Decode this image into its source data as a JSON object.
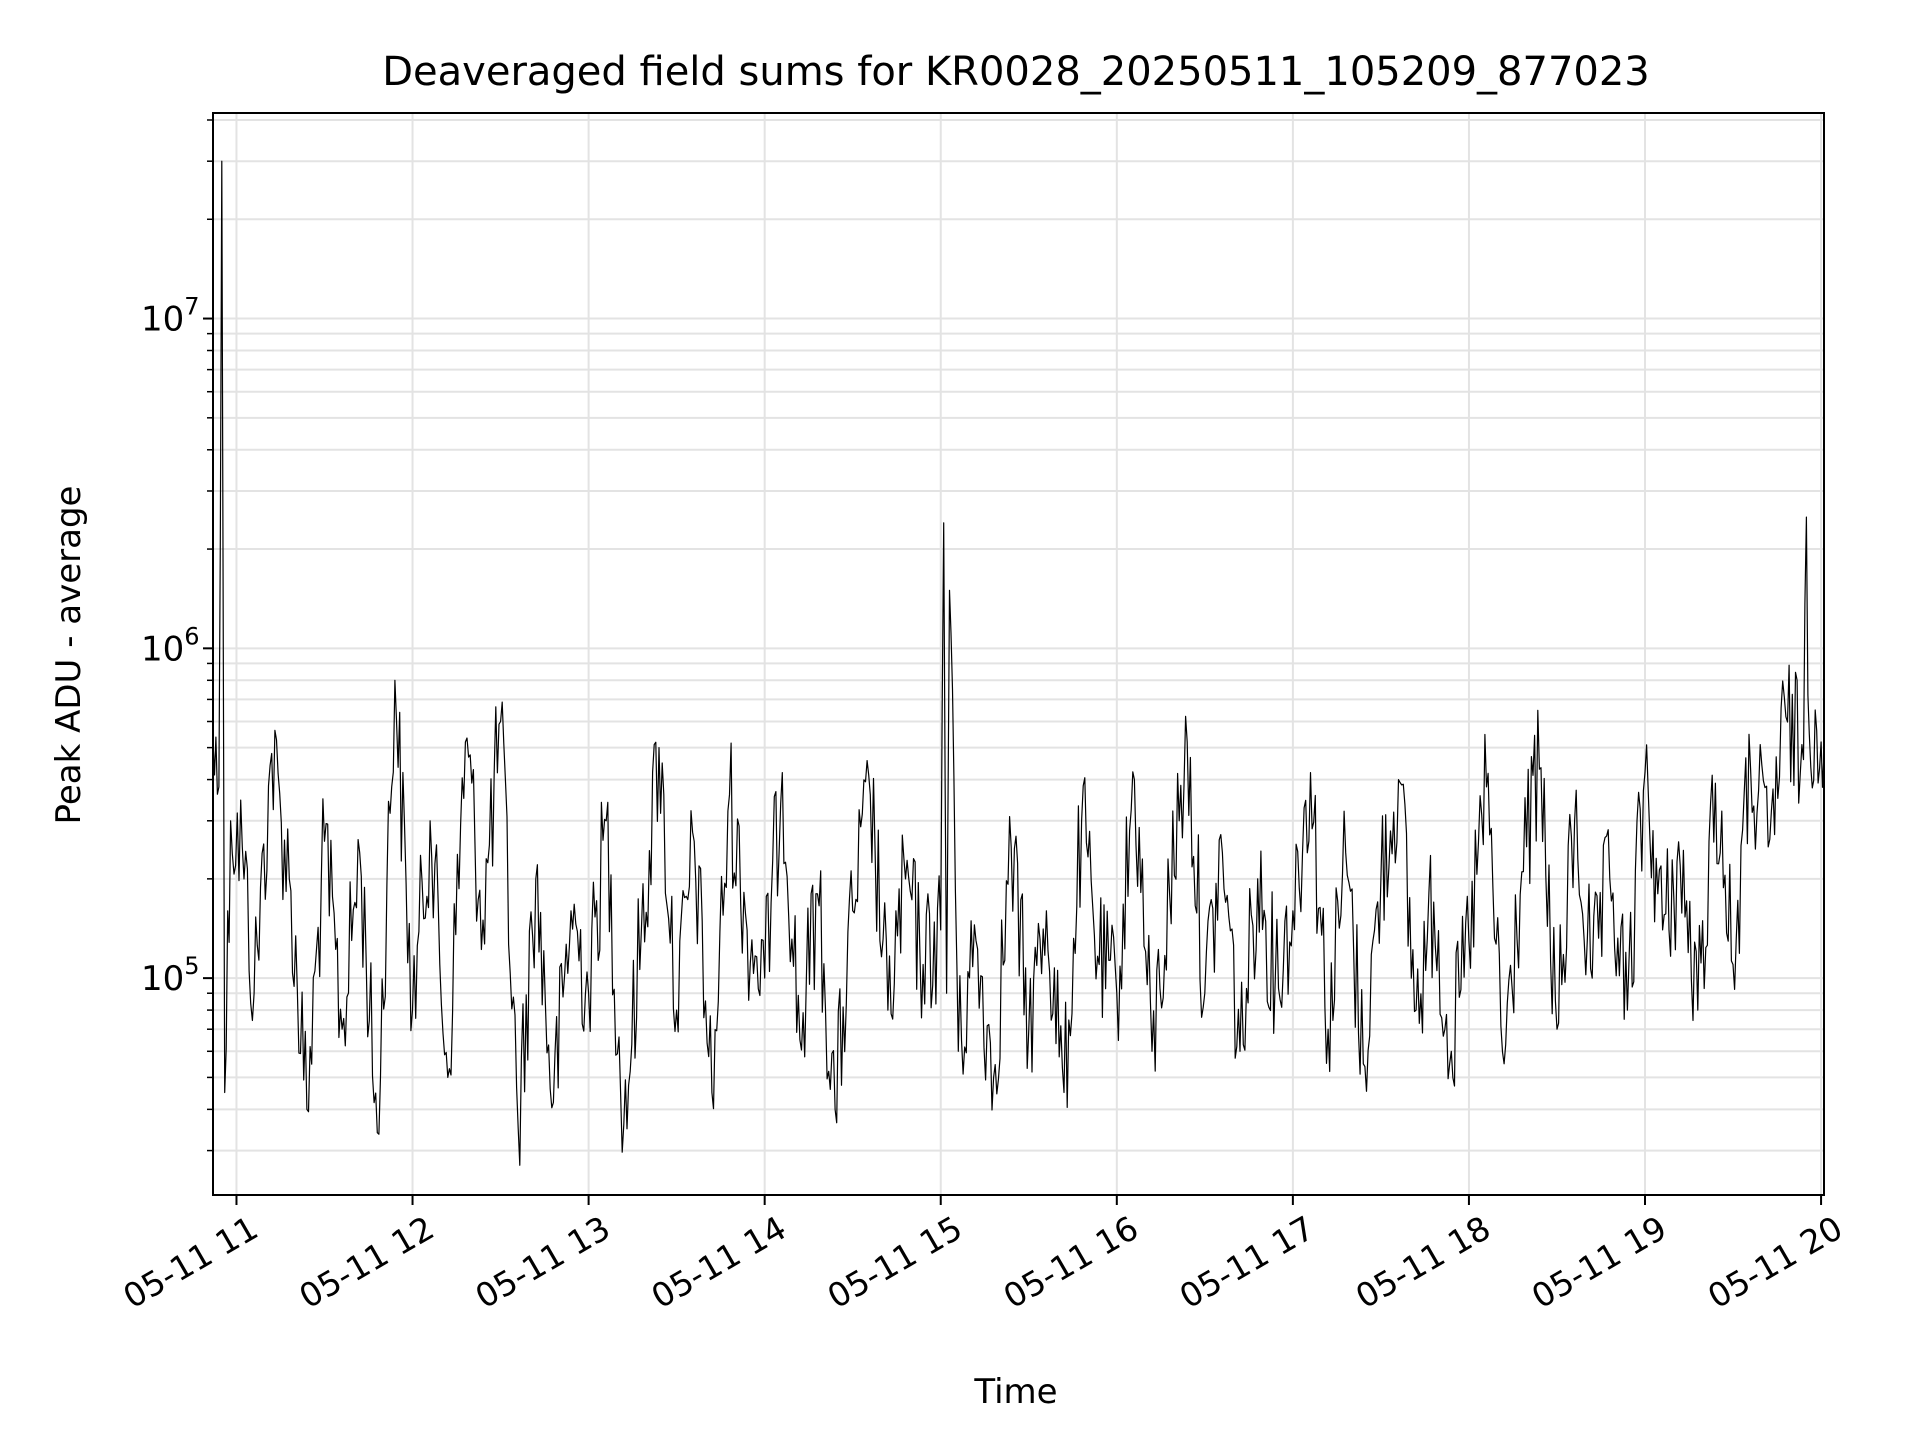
{
  "chart_data": {
    "type": "line",
    "title": "Deaveraged field sums for KR0028_20250511_105209_877023",
    "xlabel": "Time",
    "ylabel": "Peak ADU - average",
    "yscale": "log",
    "grid": true,
    "xlim": [
      "2025-05-11 10:52",
      "2025-05-11 20:01"
    ],
    "ylim": [
      22000,
      42000000
    ],
    "x_ticks": [
      {
        "value": "2025-05-11 11:00",
        "label": "05-11 11"
      },
      {
        "value": "2025-05-11 12:00",
        "label": "05-11 12"
      },
      {
        "value": "2025-05-11 13:00",
        "label": "05-11 13"
      },
      {
        "value": "2025-05-11 14:00",
        "label": "05-11 14"
      },
      {
        "value": "2025-05-11 15:00",
        "label": "05-11 15"
      },
      {
        "value": "2025-05-11 16:00",
        "label": "05-11 16"
      },
      {
        "value": "2025-05-11 17:00",
        "label": "05-11 17"
      },
      {
        "value": "2025-05-11 18:00",
        "label": "05-11 18"
      },
      {
        "value": "2025-05-11 19:00",
        "label": "05-11 19"
      },
      {
        "value": "2025-05-11 20:00",
        "label": "05-11 20"
      }
    ],
    "y_ticks": [
      {
        "value": 100000,
        "base": "10",
        "exp": "5"
      },
      {
        "value": 1000000,
        "base": "10",
        "exp": "6"
      },
      {
        "value": 10000000,
        "base": "10",
        "exp": "7"
      }
    ],
    "series": [
      {
        "color": "#000000",
        "x": [
          "2025-05-11 10:52",
          "2025-05-11 10:54",
          "2025-05-11 10:55",
          "2025-05-11 10:56",
          "2025-05-11 10:58",
          "2025-05-11 11:02",
          "2025-05-11 11:06",
          "2025-05-11 11:12",
          "2025-05-11 11:18",
          "2025-05-11 11:24",
          "2025-05-11 11:30",
          "2025-05-11 11:36",
          "2025-05-11 11:42",
          "2025-05-11 11:48",
          "2025-05-11 11:54",
          "2025-05-11 12:00",
          "2025-05-11 12:06",
          "2025-05-11 12:12",
          "2025-05-11 12:18",
          "2025-05-11 12:24",
          "2025-05-11 12:30",
          "2025-05-11 12:36",
          "2025-05-11 12:42",
          "2025-05-11 12:48",
          "2025-05-11 12:54",
          "2025-05-11 13:00",
          "2025-05-11 13:06",
          "2025-05-11 13:12",
          "2025-05-11 13:18",
          "2025-05-11 13:24",
          "2025-05-11 13:30",
          "2025-05-11 13:36",
          "2025-05-11 13:42",
          "2025-05-11 13:48",
          "2025-05-11 13:54",
          "2025-05-11 14:00",
          "2025-05-11 14:06",
          "2025-05-11 14:12",
          "2025-05-11 14:18",
          "2025-05-11 14:24",
          "2025-05-11 14:30",
          "2025-05-11 14:36",
          "2025-05-11 14:42",
          "2025-05-11 14:48",
          "2025-05-11 14:54",
          "2025-05-11 15:00",
          "2025-05-11 15:01",
          "2025-05-11 15:02",
          "2025-05-11 15:03",
          "2025-05-11 15:04",
          "2025-05-11 15:06",
          "2025-05-11 15:12",
          "2025-05-11 15:18",
          "2025-05-11 15:24",
          "2025-05-11 15:30",
          "2025-05-11 15:36",
          "2025-05-11 15:42",
          "2025-05-11 15:48",
          "2025-05-11 15:54",
          "2025-05-11 16:00",
          "2025-05-11 16:06",
          "2025-05-11 16:12",
          "2025-05-11 16:18",
          "2025-05-11 16:24",
          "2025-05-11 16:30",
          "2025-05-11 16:36",
          "2025-05-11 16:42",
          "2025-05-11 16:48",
          "2025-05-11 16:54",
          "2025-05-11 17:00",
          "2025-05-11 17:06",
          "2025-05-11 17:12",
          "2025-05-11 17:18",
          "2025-05-11 17:24",
          "2025-05-11 17:30",
          "2025-05-11 17:36",
          "2025-05-11 17:42",
          "2025-05-11 17:48",
          "2025-05-11 17:54",
          "2025-05-11 18:00",
          "2025-05-11 18:06",
          "2025-05-11 18:12",
          "2025-05-11 18:18",
          "2025-05-11 18:24",
          "2025-05-11 18:30",
          "2025-05-11 18:36",
          "2025-05-11 18:42",
          "2025-05-11 18:48",
          "2025-05-11 18:54",
          "2025-05-11 19:00",
          "2025-05-11 19:06",
          "2025-05-11 19:12",
          "2025-05-11 19:18",
          "2025-05-11 19:24",
          "2025-05-11 19:30",
          "2025-05-11 19:36",
          "2025-05-11 19:42",
          "2025-05-11 19:48",
          "2025-05-11 19:54",
          "2025-05-11 19:55",
          "2025-05-11 19:56",
          "2025-05-11 19:58",
          "2025-05-11 20:00",
          "2025-05-11 20:01"
        ],
        "y": [
          520000,
          380000,
          30000000,
          45000,
          300000,
          250000,
          90000,
          480000,
          200000,
          40000,
          260000,
          70000,
          240000,
          34000,
          800000,
          80000,
          300000,
          50000,
          520000,
          150000,
          600000,
          35000,
          200000,
          42000,
          160000,
          90000,
          300000,
          36000,
          140000,
          500000,
          80000,
          260000,
          45000,
          360000,
          140000,
          100000,
          420000,
          65000,
          180000,
          40000,
          160000,
          360000,
          80000,
          200000,
          110000,
          140000,
          2400000,
          90000,
          1500000,
          750000,
          60000,
          130000,
          50000,
          250000,
          70000,
          160000,
          45000,
          300000,
          110000,
          90000,
          400000,
          60000,
          180000,
          520000,
          90000,
          240000,
          60000,
          200000,
          100000,
          160000,
          420000,
          70000,
          240000,
          55000,
          200000,
          400000,
          80000,
          170000,
          60000,
          130000,
          380000,
          55000,
          210000,
          430000,
          70000,
          300000,
          100000,
          200000,
          80000,
          420000,
          140000,
          220000,
          80000,
          390000,
          110000,
          430000,
          250000,
          620000,
          460000,
          2500000,
          550000,
          650000,
          520000,
          480000
        ]
      }
    ]
  }
}
